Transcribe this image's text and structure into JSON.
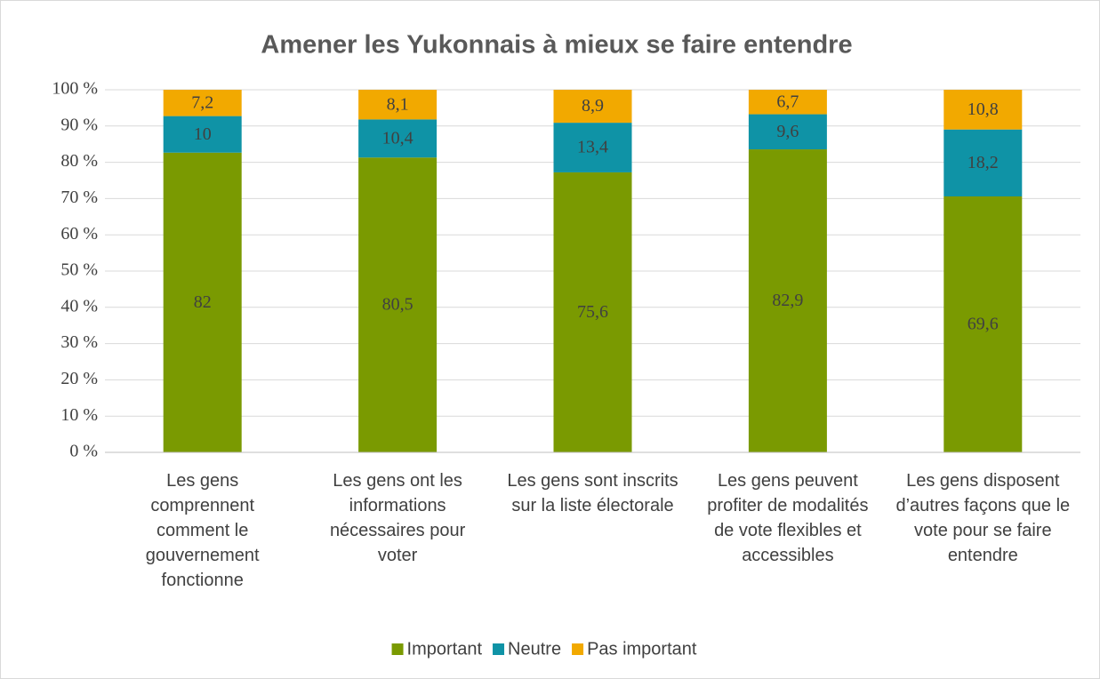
{
  "chart_data": {
    "type": "bar",
    "stacked": "percent",
    "title": "Amener les Yukonnais à mieux se faire entendre",
    "categories": [
      "Les gens comprennent comment le gouvernement fonctionne",
      "Les gens ont les informations nécessaires pour voter",
      "Les gens sont inscrits sur la liste électorale",
      "Les gens peuvent profiter de modalités de vote flexibles et accessibles",
      "Les gens disposent d’autres façons que le vote pour se faire entendre"
    ],
    "series": [
      {
        "name": "Important",
        "color": "#7a9a01",
        "values": [
          82,
          80.5,
          75.6,
          82.9,
          69.6
        ],
        "value_labels": [
          "82",
          "80,5",
          "75,6",
          "82,9",
          "69,6"
        ]
      },
      {
        "name": "Neutre",
        "color": "#0f93a6",
        "values": [
          10,
          10.4,
          13.4,
          9.6,
          18.2
        ],
        "value_labels": [
          "10",
          "10,4",
          "13,4",
          "9,6",
          "18,2"
        ]
      },
      {
        "name": "Pas important",
        "color": "#f2a900",
        "values": [
          7.2,
          8.1,
          8.9,
          6.7,
          10.8
        ],
        "value_labels": [
          "7,2",
          "8,1",
          "8,9",
          "6,7",
          "10,8"
        ]
      }
    ],
    "ylim": [
      0,
      100
    ],
    "yticks": [
      {
        "value": 0,
        "label": "0 %"
      },
      {
        "value": 10,
        "label": "10 %"
      },
      {
        "value": 20,
        "label": "20 %"
      },
      {
        "value": 30,
        "label": "30 %"
      },
      {
        "value": 40,
        "label": "40 %"
      },
      {
        "value": 50,
        "label": "50 %"
      },
      {
        "value": 60,
        "label": "60 %"
      },
      {
        "value": 70,
        "label": "70 %"
      },
      {
        "value": 80,
        "label": "80 %"
      },
      {
        "value": 90,
        "label": "90 %"
      },
      {
        "value": 100,
        "label": "100 %"
      }
    ],
    "grid": true,
    "legend": "bottom"
  }
}
